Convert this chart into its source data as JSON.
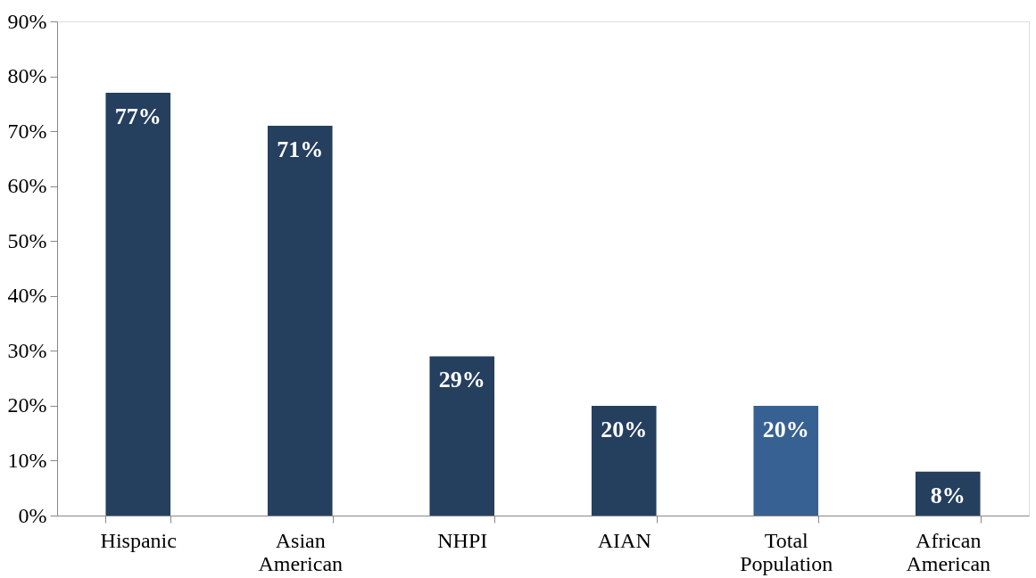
{
  "chart_data": {
    "type": "bar",
    "categories": [
      "Hispanic",
      "Asian American",
      "NHPI",
      "AIAN",
      "Total Population",
      "African American"
    ],
    "values": [
      77,
      71,
      29,
      20,
      20,
      8
    ],
    "colors": [
      "#253f5e",
      "#253f5e",
      "#253f5e",
      "#253f5e",
      "#376192",
      "#253f5e"
    ],
    "value_labels": [
      "77%",
      "71%",
      "29%",
      "20%",
      "20%",
      "8%"
    ],
    "ylim": [
      0,
      90
    ],
    "yticks": [
      {
        "value": 0,
        "label": "0%"
      },
      {
        "value": 10,
        "label": "10%"
      },
      {
        "value": 20,
        "label": "20%"
      },
      {
        "value": 30,
        "label": "30%"
      },
      {
        "value": 40,
        "label": "40%"
      },
      {
        "value": 50,
        "label": "50%"
      },
      {
        "value": 60,
        "label": "60%"
      },
      {
        "value": 70,
        "label": "70%"
      },
      {
        "value": 80,
        "label": "80%"
      },
      {
        "value": 90,
        "label": "90%"
      }
    ],
    "grid": false
  }
}
